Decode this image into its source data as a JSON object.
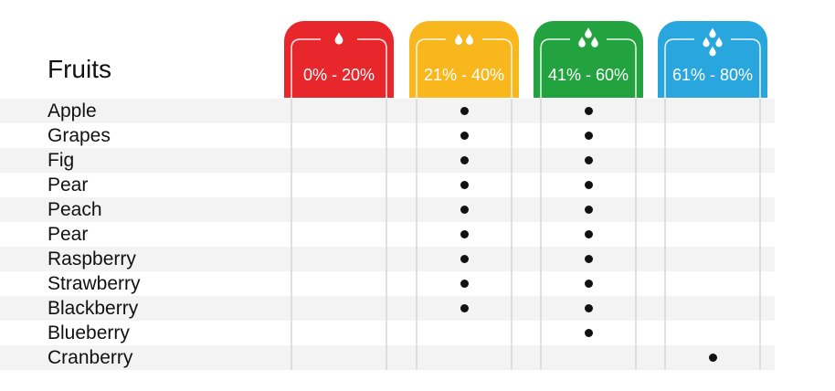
{
  "table": {
    "title": "Fruits",
    "columns": [
      {
        "range": "0% - 20%",
        "color": "#e8272d",
        "icon": "single-drop-icon"
      },
      {
        "range": "21% - 40%",
        "color": "#f7b71d",
        "icon": "two-drops-icon"
      },
      {
        "range": "41% - 60%",
        "color": "#22a33f",
        "icon": "three-drops-icon"
      },
      {
        "range": "61% - 80%",
        "color": "#2aa6df",
        "icon": "four-drops-icon"
      }
    ],
    "rows": [
      {
        "fruit": "Apple",
        "marks": [
          false,
          true,
          true,
          false
        ]
      },
      {
        "fruit": "Grapes",
        "marks": [
          false,
          true,
          true,
          false
        ]
      },
      {
        "fruit": "Fig",
        "marks": [
          false,
          true,
          true,
          false
        ]
      },
      {
        "fruit": "Pear",
        "marks": [
          false,
          true,
          true,
          false
        ]
      },
      {
        "fruit": "Peach",
        "marks": [
          false,
          true,
          true,
          false
        ]
      },
      {
        "fruit": "Pear",
        "marks": [
          false,
          true,
          true,
          false
        ]
      },
      {
        "fruit": "Raspberry",
        "marks": [
          false,
          true,
          true,
          false
        ]
      },
      {
        "fruit": "Strawberry",
        "marks": [
          false,
          true,
          true,
          false
        ]
      },
      {
        "fruit": "Blackberry",
        "marks": [
          false,
          true,
          true,
          false
        ]
      },
      {
        "fruit": "Blueberry",
        "marks": [
          false,
          false,
          true,
          false
        ]
      },
      {
        "fruit": "Cranberry",
        "marks": [
          false,
          false,
          false,
          true
        ]
      }
    ]
  }
}
